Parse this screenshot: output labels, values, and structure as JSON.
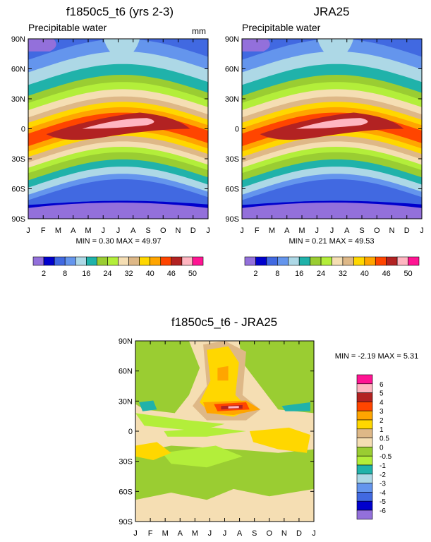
{
  "chart_data": [
    {
      "type": "heatmap",
      "title": "f1850c5_t6 (yrs 2-3)",
      "subtitle_left": "Precipitable water",
      "subtitle_right": "mm",
      "x_ticks": [
        "J",
        "F",
        "M",
        "A",
        "M",
        "J",
        "J",
        "A",
        "S",
        "O",
        "N",
        "D",
        "J"
      ],
      "y_ticks": [
        "90N",
        "60N",
        "30N",
        "0",
        "30S",
        "60S",
        "90S"
      ],
      "stats": "MIN =  0.30 MAX =  49.97",
      "min": 0.3,
      "max": 49.97
    },
    {
      "type": "heatmap",
      "title": "JRA25",
      "subtitle_left": "Precipitable water",
      "x_ticks": [
        "J",
        "F",
        "M",
        "A",
        "M",
        "J",
        "J",
        "A",
        "S",
        "O",
        "N",
        "D",
        "J"
      ],
      "y_ticks": [
        "90N",
        "60N",
        "30N",
        "0",
        "30S",
        "60S",
        "90S"
      ],
      "stats": "MIN =  0.21 MAX =  49.53",
      "min": 0.21,
      "max": 49.53
    },
    {
      "type": "heatmap",
      "title": "f1850c5_t6 - JRA25",
      "x_ticks": [
        "J",
        "F",
        "M",
        "A",
        "M",
        "J",
        "J",
        "A",
        "S",
        "O",
        "N",
        "D",
        "J"
      ],
      "y_ticks": [
        "90N",
        "60N",
        "30N",
        "0",
        "30S",
        "60S",
        "90S"
      ],
      "stats": "MIN = -2.19 MAX =  5.31",
      "min": -2.19,
      "max": 5.31
    }
  ],
  "colorbar_main": {
    "colors": [
      "#9370db",
      "#0000cd",
      "#4169e1",
      "#6495ed",
      "#add8e6",
      "#20b2aa",
      "#9acd32",
      "#b3ee3a",
      "#f5deb3",
      "#deb887",
      "#ffd700",
      "#ffa500",
      "#ff4500",
      "#b22222",
      "#ffb6c1",
      "#ff1493"
    ],
    "labels": [
      "2",
      "8",
      "16",
      "24",
      "32",
      "40",
      "46",
      "50"
    ]
  },
  "colorbar_diff": {
    "colors": [
      "#ff1493",
      "#ffb6c1",
      "#b22222",
      "#ff4500",
      "#ffa500",
      "#ffd700",
      "#deb887",
      "#f5deb3",
      "#9acd32",
      "#b3ee3a",
      "#20b2aa",
      "#add8e6",
      "#6495ed",
      "#4169e1",
      "#0000cd",
      "#9370db"
    ],
    "labels": [
      "6",
      "5",
      "4",
      "3",
      "2",
      "1",
      "0.5",
      "0",
      "-0.5",
      "-1",
      "-2",
      "-3",
      "-4",
      "-5",
      "-6"
    ]
  }
}
